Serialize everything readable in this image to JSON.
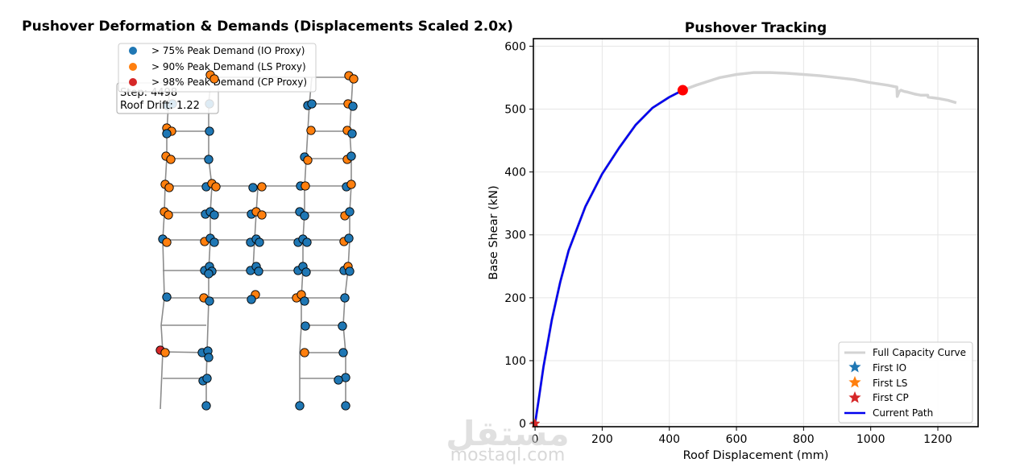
{
  "watermark": {
    "arabic": "مستقل",
    "latin": "mostaql.com"
  },
  "colors": {
    "io": "#1f77b4",
    "ls": "#ff7f0e",
    "cp": "#d62728",
    "frame": "#8c8c8c",
    "capacity": "#d3d3d3",
    "path": "#0000ee",
    "marker": "#ff0000"
  },
  "chart_data": [
    {
      "type": "scatter",
      "title": "Pushover Deformation & Demands (Displacements Scaled 2.0x)",
      "info_box": {
        "step": "Step: 4498",
        "roof_drift": "Roof Drift: 1.22"
      },
      "legend": {
        "placement": "top-center",
        "entries": [
          {
            "label": "> 75% Peak Demand (IO Proxy)",
            "color": "#1f77b4"
          },
          {
            "label": "> 90% Peak Demand (LS Proxy)",
            "color": "#ff7f0e"
          },
          {
            "label": "> 98% Peak Demand (CP Proxy)",
            "color": "#d62728"
          }
        ]
      },
      "grid": false
    },
    {
      "type": "line",
      "title": "Pushover Tracking",
      "xlabel": "Roof Displacement (mm)",
      "ylabel": "Base Shear (kN)",
      "xlim": [
        -5,
        1320
      ],
      "ylim": [
        -5,
        612
      ],
      "xticks": [
        0,
        200,
        400,
        600,
        800,
        1000,
        1200
      ],
      "yticks": [
        0,
        100,
        200,
        300,
        400,
        500,
        600
      ],
      "grid": true,
      "legend_placement": "lower-right",
      "series": [
        {
          "name": "Full Capacity Curve",
          "x": [
            0,
            10,
            25,
            50,
            75,
            100,
            150,
            200,
            250,
            300,
            350,
            400,
            440,
            480,
            550,
            600,
            650,
            700,
            750,
            800,
            850,
            900,
            950,
            1000,
            1050,
            1078,
            1079,
            1085,
            1090,
            1100,
            1110,
            1130,
            1150,
            1170,
            1171,
            1200,
            1230,
            1255
          ],
          "y": [
            0,
            35,
            90,
            165,
            225,
            275,
            345,
            397,
            438,
            475,
            502,
            519,
            530,
            538,
            550,
            555,
            558,
            558,
            557,
            555,
            553,
            550,
            547,
            542,
            538,
            535,
            520,
            528,
            530,
            528,
            527,
            524,
            522,
            522,
            519,
            517,
            514,
            510
          ]
        },
        {
          "name": "Current Path",
          "x": [
            0,
            10,
            25,
            50,
            75,
            100,
            150,
            200,
            250,
            300,
            350,
            400,
            440
          ],
          "y": [
            0,
            35,
            90,
            165,
            225,
            275,
            345,
            397,
            438,
            475,
            502,
            519,
            530
          ]
        },
        {
          "name": "First IO",
          "marker": "star",
          "color": "#1f77b4",
          "x": [
            0
          ],
          "y": [
            0
          ]
        },
        {
          "name": "First LS",
          "marker": "star",
          "color": "#ff7f0e",
          "x": [
            0
          ],
          "y": [
            0
          ]
        },
        {
          "name": "First CP",
          "marker": "star",
          "color": "#d62728",
          "x": [
            0
          ],
          "y": [
            0
          ]
        }
      ],
      "current_point": {
        "x": 440,
        "y": 530
      }
    }
  ]
}
